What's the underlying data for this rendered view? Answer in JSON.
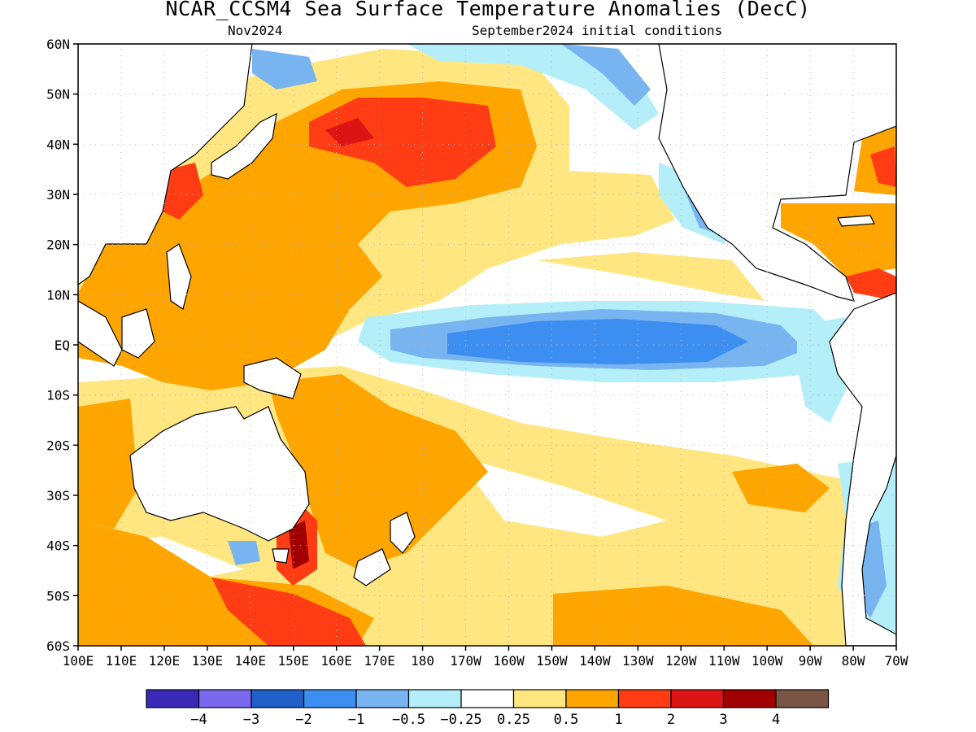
{
  "title": "NCAR_CCSM4 Sea Surface Temperature Anomalies (DecC)",
  "forecast_month": "Nov2024",
  "init_conditions": "September2024 initial conditions",
  "lat_labels": [
    "60N",
    "50N",
    "40N",
    "30N",
    "20N",
    "10N",
    "EQ",
    "10S",
    "20S",
    "30S",
    "40S",
    "50S",
    "60S"
  ],
  "lon_labels": [
    "100E",
    "110E",
    "120E",
    "130E",
    "140E",
    "150E",
    "160E",
    "170E",
    "180",
    "170W",
    "160W",
    "150W",
    "140W",
    "130W",
    "120W",
    "110W",
    "100W",
    "90W",
    "80W",
    "70W"
  ],
  "colorbar": {
    "colors": [
      "#3a28b8",
      "#7b68ee",
      "#1e5fc8",
      "#3c8ef0",
      "#78b4f0",
      "#b4eef8",
      "#ffffff",
      "#ffe680",
      "#ffa500",
      "#ff3c14",
      "#dc1414",
      "#a00000",
      "#7a5444"
    ],
    "tick_labels": [
      "-4",
      "-3",
      "-2",
      "-1",
      "-0.5",
      "-0.25",
      "0.25",
      "0.5",
      "1",
      "2",
      "3",
      "4"
    ]
  },
  "legend_colors": {
    "ocean_neutral": "#ffffff",
    "land": "#ffffff",
    "coast": "#000000",
    "grid": "#b4b4b4"
  }
}
